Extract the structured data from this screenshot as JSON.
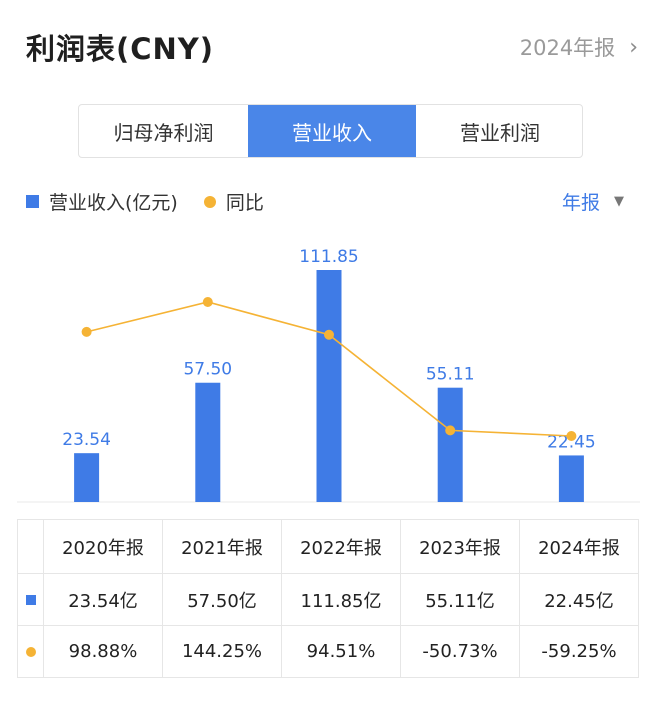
{
  "header": {
    "title": "利润表(CNY)",
    "period_link": "2024年报",
    "chevron_icon": "chevron-right-icon"
  },
  "tabs": [
    {
      "label": "归母净利润",
      "active": false
    },
    {
      "label": "营业收入",
      "active": true
    },
    {
      "label": "营业利润",
      "active": false
    }
  ],
  "legend": {
    "bar_label": "营业收入(亿元)",
    "line_label": "同比"
  },
  "period_dropdown": {
    "label": "年报",
    "caret_icon": "caret-down-icon"
  },
  "colors": {
    "bar": "#3f7be6",
    "line": "#f5b335",
    "active_tab": "#4a86e8",
    "positive": "#e04848",
    "negative": "#2fa36b"
  },
  "chart_data": {
    "type": "bar",
    "categories": [
      "2020年报",
      "2021年报",
      "2022年报",
      "2023年报",
      "2024年报"
    ],
    "series": [
      {
        "name": "营业收入(亿元)",
        "type": "bar",
        "values": [
          23.54,
          57.5,
          111.85,
          55.11,
          22.45
        ],
        "labels": [
          "23.54",
          "57.50",
          "111.85",
          "55.11",
          "22.45"
        ]
      },
      {
        "name": "同比",
        "type": "line",
        "values": [
          98.88,
          144.25,
          94.51,
          -50.73,
          -59.25
        ]
      }
    ],
    "ylim_bar": [
      0,
      111.85
    ],
    "ylim_line": [
      -59.25,
      144.25
    ],
    "grid": false
  },
  "table": {
    "headers": [
      "2020年报",
      "2021年报",
      "2022年报",
      "2023年报",
      "2024年报"
    ],
    "revenue_row": [
      "23.54亿",
      "57.50亿",
      "111.85亿",
      "55.11亿",
      "22.45亿"
    ],
    "yoy_row": [
      "98.88%",
      "144.25%",
      "94.51%",
      "-50.73%",
      "-59.25%"
    ]
  }
}
